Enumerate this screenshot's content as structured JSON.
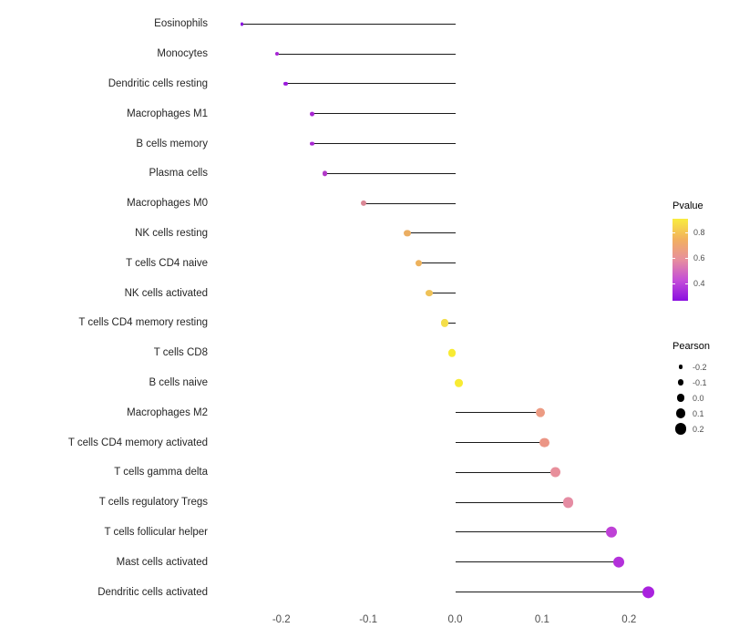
{
  "chart_data": {
    "type": "lollipop",
    "title": "",
    "xlabel": "",
    "ylabel": "",
    "grid": false,
    "xlim": [
      -0.27,
      0.25
    ],
    "xtick_labels": [
      "-0.2",
      "-0.1",
      "0.0",
      "0.1",
      "0.2"
    ],
    "xtick_values": [
      -0.2,
      -0.1,
      0.0,
      0.1,
      0.2
    ],
    "points": [
      {
        "label": "Eosinophils",
        "pearson": -0.245,
        "color": "#8812DE"
      },
      {
        "label": "Monocytes",
        "pearson": -0.205,
        "color": "#A825D6"
      },
      {
        "label": "Dendritic cells resting",
        "pearson": -0.195,
        "color": "#9B1BDC"
      },
      {
        "label": "Macrophages M1",
        "pearson": -0.165,
        "color": "#A826D2"
      },
      {
        "label": "B cells memory",
        "pearson": -0.165,
        "color": "#A827D2"
      },
      {
        "label": "Plasma cells",
        "pearson": -0.15,
        "color": "#B23AC8"
      },
      {
        "label": "Macrophages M0",
        "pearson": -0.105,
        "color": "#DA8795"
      },
      {
        "label": "NK cells resting",
        "pearson": -0.055,
        "color": "#EBAE62"
      },
      {
        "label": "T cells CD4 naive",
        "pearson": -0.042,
        "color": "#EDB25D"
      },
      {
        "label": "NK cells activated",
        "pearson": -0.03,
        "color": "#EFC258"
      },
      {
        "label": "T cells CD4 memory resting",
        "pearson": -0.012,
        "color": "#F4DE49"
      },
      {
        "label": "T cells CD8",
        "pearson": -0.004,
        "color": "#F8EB33"
      },
      {
        "label": "B cells naive",
        "pearson": 0.004,
        "color": "#F8EB33"
      },
      {
        "label": "Macrophages M2",
        "pearson": 0.098,
        "color": "#EC9B83"
      },
      {
        "label": "T cells CD4 memory activated",
        "pearson": 0.103,
        "color": "#EB9585"
      },
      {
        "label": "T cells gamma delta",
        "pearson": 0.115,
        "color": "#E88F9B"
      },
      {
        "label": "T cells regulatory Tregs",
        "pearson": 0.13,
        "color": "#E58CA3"
      },
      {
        "label": "T cells follicular helper",
        "pearson": 0.18,
        "color": "#BE41D6"
      },
      {
        "label": "Mast cells activated",
        "pearson": 0.188,
        "color": "#B331DA"
      },
      {
        "label": "Dendritic cells activated",
        "pearson": 0.222,
        "color": "#A922DE"
      }
    ],
    "legends": {
      "pvalue": {
        "title": "Pvalue",
        "tick_labels": [
          "0.8",
          "0.6",
          "0.4"
        ],
        "gradient_top_to_bottom": [
          "#F9EC3F",
          "#F2B05E",
          "#E78F9E",
          "#C44ED8",
          "#8A0FE0"
        ]
      },
      "pearson": {
        "title": "Pearson",
        "tick_labels": [
          "-0.2",
          "-0.1",
          "0.0",
          "0.1",
          "0.2"
        ],
        "tick_values": [
          -0.2,
          -0.1,
          0.0,
          0.1,
          0.2
        ],
        "dot_color": "#000000"
      }
    }
  }
}
